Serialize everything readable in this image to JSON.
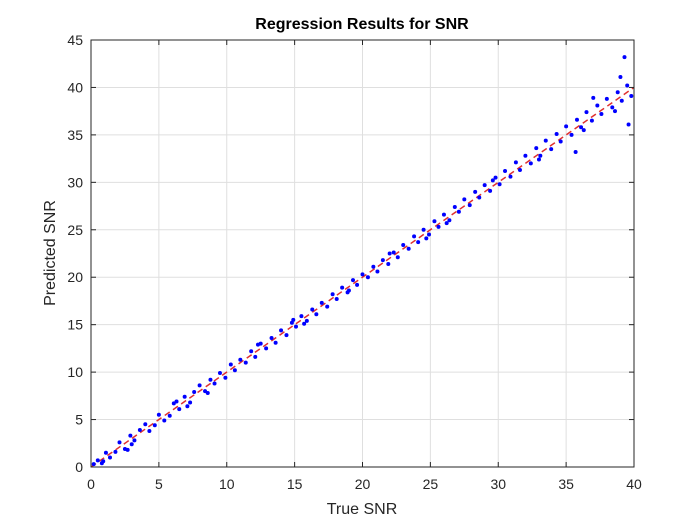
{
  "chart_data": {
    "type": "scatter",
    "title": "Regression Results for SNR",
    "xlabel": "True SNR",
    "ylabel": "Predicted SNR",
    "xlim": [
      0,
      40
    ],
    "ylim": [
      0,
      45
    ],
    "xticks": [
      0,
      5,
      10,
      15,
      20,
      25,
      30,
      35,
      40
    ],
    "yticks": [
      0,
      5,
      10,
      15,
      20,
      25,
      30,
      35,
      40,
      45
    ],
    "grid": true,
    "reference_line": {
      "from": [
        0,
        0
      ],
      "to": [
        40,
        40
      ],
      "color": "#e0302f",
      "style": "dashed"
    },
    "series": [
      {
        "color": "#0000ff",
        "marker": "dot",
        "x": [
          0.2,
          0.5,
          0.8,
          1.1,
          1.4,
          1.8,
          2.1,
          2.5,
          2.9,
          3.2,
          3.6,
          4.0,
          4.3,
          4.7,
          5.0,
          5.4,
          5.8,
          6.1,
          6.5,
          6.9,
          7.3,
          7.6,
          8.0,
          8.4,
          8.8,
          9.1,
          9.5,
          9.9,
          10.3,
          10.6,
          11.0,
          11.4,
          11.8,
          12.1,
          12.5,
          12.9,
          13.3,
          13.6,
          14.0,
          14.4,
          14.8,
          15.1,
          15.5,
          15.9,
          16.3,
          16.6,
          17.0,
          17.4,
          17.8,
          18.1,
          18.5,
          18.9,
          19.3,
          19.6,
          20.0,
          20.4,
          20.8,
          21.1,
          21.5,
          21.9,
          22.3,
          22.6,
          23.0,
          23.4,
          23.8,
          24.1,
          24.5,
          24.9,
          25.3,
          25.6,
          26.0,
          26.4,
          26.8,
          27.1,
          27.5,
          27.9,
          28.3,
          28.6,
          29.0,
          29.4,
          29.8,
          30.1,
          30.5,
          30.9,
          31.3,
          31.6,
          32.0,
          32.4,
          32.8,
          33.1,
          33.5,
          33.9,
          34.3,
          34.6,
          35.0,
          35.4,
          35.8,
          36.1,
          36.5,
          36.9,
          37.3,
          37.6,
          38.0,
          38.4,
          38.8,
          39.1,
          39.5,
          39.8,
          0.9,
          3.0,
          6.3,
          8.6,
          12.3,
          15.7,
          19.0,
          22.0,
          26.2,
          29.6,
          33.0,
          36.3,
          38.6,
          39.3,
          39.6,
          39.0,
          37.0,
          35.7,
          24.7,
          14.9,
          7.1,
          2.7
        ],
        "y": [
          0.3,
          0.7,
          0.4,
          1.5,
          1.0,
          1.6,
          2.6,
          1.9,
          3.3,
          2.8,
          3.9,
          4.5,
          3.8,
          4.4,
          5.5,
          4.9,
          5.4,
          6.7,
          6.1,
          7.4,
          6.8,
          7.9,
          8.6,
          8.0,
          9.2,
          8.8,
          9.9,
          9.4,
          10.8,
          10.2,
          11.3,
          11.0,
          12.2,
          11.6,
          13.0,
          12.5,
          13.6,
          13.1,
          14.4,
          13.9,
          15.2,
          14.8,
          15.9,
          15.4,
          16.6,
          16.1,
          17.3,
          16.9,
          18.2,
          17.7,
          18.9,
          18.4,
          19.7,
          19.2,
          20.3,
          20.0,
          21.1,
          20.6,
          21.8,
          21.4,
          22.6,
          22.1,
          23.4,
          23.0,
          24.3,
          23.7,
          25.0,
          24.5,
          25.9,
          25.3,
          26.6,
          26.0,
          27.4,
          26.9,
          28.2,
          27.6,
          29.0,
          28.4,
          29.7,
          29.1,
          30.5,
          29.8,
          31.2,
          30.6,
          32.1,
          31.3,
          32.8,
          32.0,
          33.6,
          32.8,
          34.4,
          33.5,
          35.1,
          34.3,
          35.9,
          35.0,
          36.6,
          35.8,
          37.4,
          36.5,
          38.1,
          37.2,
          38.8,
          37.9,
          39.5,
          38.6,
          40.2,
          39.1,
          0.6,
          2.4,
          6.9,
          7.8,
          12.9,
          15.1,
          18.6,
          22.5,
          25.7,
          30.2,
          32.4,
          35.5,
          37.5,
          43.2,
          36.1,
          41.1,
          38.9,
          33.2,
          24.1,
          15.5,
          6.4,
          1.8
        ]
      }
    ]
  }
}
